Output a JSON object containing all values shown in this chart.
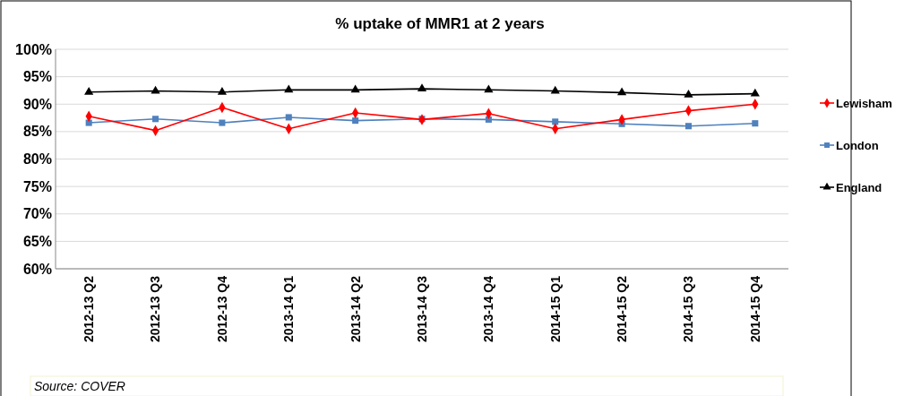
{
  "chart_data": {
    "type": "line",
    "title": "% uptake of MMR1 at  2 years",
    "categories": [
      "2012-13 Q2",
      "2012-13 Q3",
      "2012-13 Q4",
      "2013-14 Q1",
      "2013-14 Q2",
      "2013-14 Q3",
      "2013-14 Q4",
      "2014-15 Q1",
      "2014-15 Q2",
      "2014-15 Q3",
      "2014-15 Q4"
    ],
    "series": [
      {
        "name": "Lewisham",
        "color": "#ff0000",
        "marker": "diamond",
        "values": [
          87.8,
          85.2,
          89.4,
          85.5,
          88.4,
          87.2,
          88.3,
          85.5,
          87.2,
          88.8,
          90.0
        ]
      },
      {
        "name": "London",
        "color": "#4f81bd",
        "marker": "square",
        "values": [
          86.6,
          87.3,
          86.6,
          87.6,
          87.0,
          87.3,
          87.2,
          86.8,
          86.4,
          86.0,
          86.5
        ]
      },
      {
        "name": "England",
        "color": "#000000",
        "marker": "triangle",
        "values": [
          92.2,
          92.4,
          92.2,
          92.6,
          92.6,
          92.8,
          92.6,
          92.4,
          92.1,
          91.7,
          91.9
        ]
      }
    ],
    "ylim": [
      60,
      100
    ],
    "yticks": [
      {
        "value": 60,
        "label": "60%"
      },
      {
        "value": 65,
        "label": "65%"
      },
      {
        "value": 70,
        "label": "70%"
      },
      {
        "value": 75,
        "label": "75%"
      },
      {
        "value": 80,
        "label": "80%"
      },
      {
        "value": 85,
        "label": "85%"
      },
      {
        "value": 90,
        "label": "90%"
      },
      {
        "value": 95,
        "label": "95%"
      },
      {
        "value": 100,
        "label": "100%"
      }
    ],
    "grid": "y",
    "legend": "right",
    "annotations": [
      "Source: COVER"
    ]
  }
}
